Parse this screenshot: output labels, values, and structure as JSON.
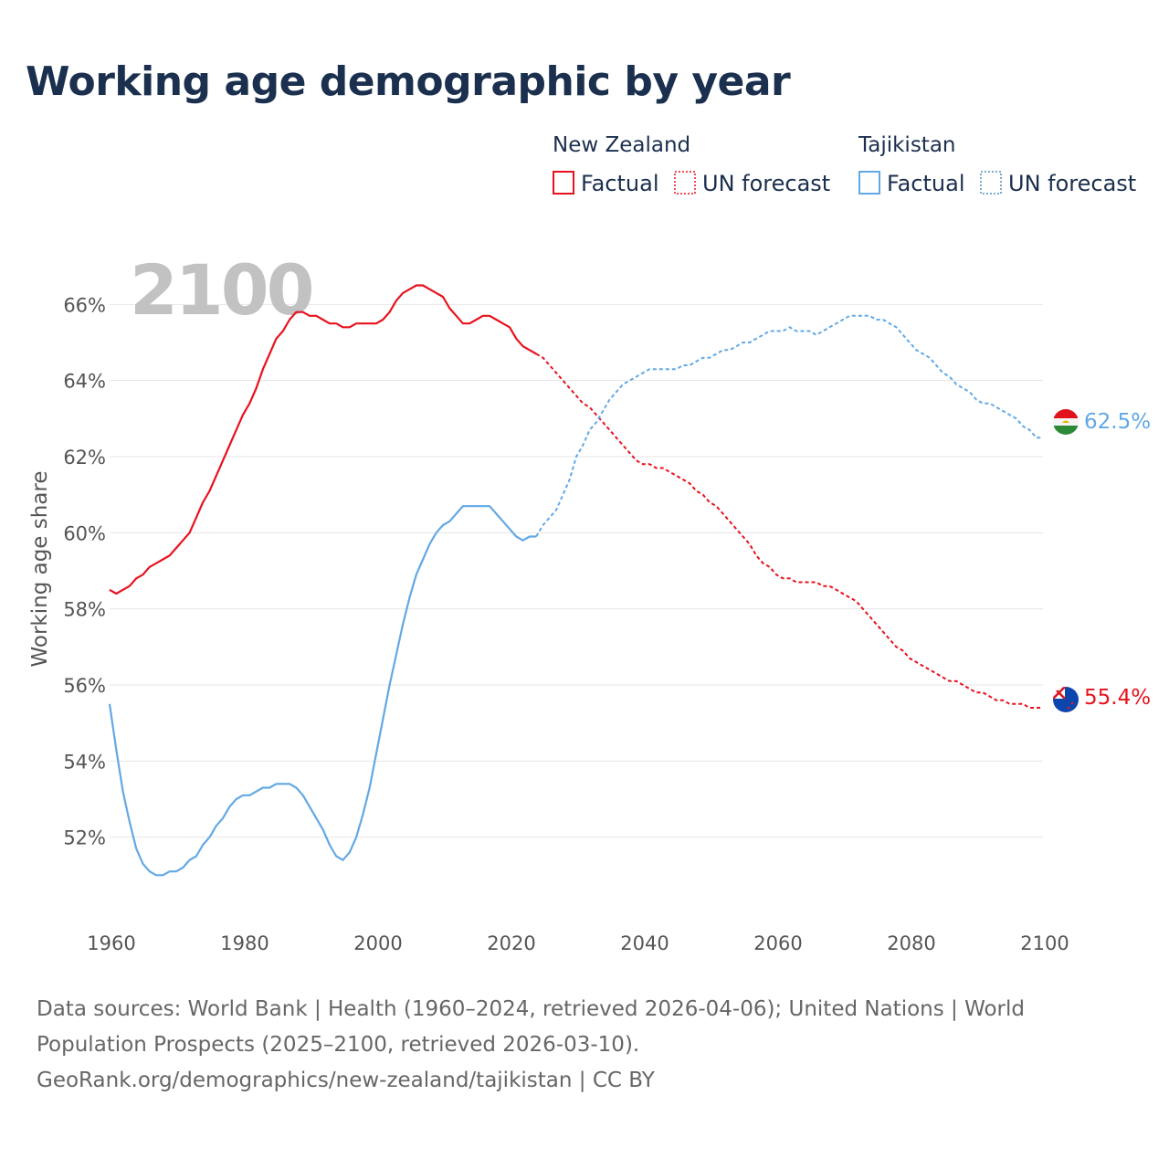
{
  "title": "Working age demographic by year",
  "footer": {
    "line1": "Data sources: World Bank | Health (1960–2024, retrieved 2026-04-06); United Nations | World",
    "line2": "Population Prospects (2025–2100, retrieved 2026-03-10).",
    "line3": "GeoRank.org/demographics/new-zealand/tajikistan | CC BY"
  },
  "legend": {
    "groups": [
      {
        "name": "New Zealand",
        "factual": "Factual",
        "forecast": "UN forecast",
        "color": "#e8121e"
      },
      {
        "name": "Tajikistan",
        "factual": "Factual",
        "forecast": "UN forecast",
        "color": "#62a8e5"
      }
    ]
  },
  "end_labels": {
    "new_zealand": "55.4%",
    "tajikistan": "62.5%"
  },
  "chart_data": {
    "type": "line",
    "title": "Working age demographic by year",
    "year_watermark": "2100",
    "xlabel": "",
    "ylabel": "Working age share",
    "xlim": [
      1960,
      2100
    ],
    "ylim": [
      50,
      68
    ],
    "x_ticks": [
      1960,
      1980,
      2000,
      2020,
      2040,
      2060,
      2080,
      2100
    ],
    "y_ticks": [
      52,
      54,
      56,
      58,
      60,
      62,
      64,
      66
    ],
    "y_tick_labels": [
      "52%",
      "54%",
      "56%",
      "58%",
      "60%",
      "62%",
      "64%",
      "66%"
    ],
    "grid": true,
    "forecast_start": 2024,
    "series": [
      {
        "name": "New Zealand",
        "color": "#e8121e",
        "end_label": "55.4%",
        "points": [
          [
            1960,
            58.5
          ],
          [
            1961,
            58.4
          ],
          [
            1962,
            58.5
          ],
          [
            1963,
            58.6
          ],
          [
            1964,
            58.8
          ],
          [
            1965,
            58.9
          ],
          [
            1966,
            59.1
          ],
          [
            1967,
            59.2
          ],
          [
            1968,
            59.3
          ],
          [
            1969,
            59.4
          ],
          [
            1970,
            59.6
          ],
          [
            1971,
            59.8
          ],
          [
            1972,
            60.0
          ],
          [
            1973,
            60.4
          ],
          [
            1974,
            60.8
          ],
          [
            1975,
            61.1
          ],
          [
            1976,
            61.5
          ],
          [
            1977,
            61.9
          ],
          [
            1978,
            62.3
          ],
          [
            1979,
            62.7
          ],
          [
            1980,
            63.1
          ],
          [
            1981,
            63.4
          ],
          [
            1982,
            63.8
          ],
          [
            1983,
            64.3
          ],
          [
            1984,
            64.7
          ],
          [
            1985,
            65.1
          ],
          [
            1986,
            65.3
          ],
          [
            1987,
            65.6
          ],
          [
            1988,
            65.8
          ],
          [
            1989,
            65.8
          ],
          [
            1990,
            65.7
          ],
          [
            1991,
            65.7
          ],
          [
            1992,
            65.6
          ],
          [
            1993,
            65.5
          ],
          [
            1994,
            65.5
          ],
          [
            1995,
            65.4
          ],
          [
            1996,
            65.4
          ],
          [
            1997,
            65.5
          ],
          [
            1998,
            65.5
          ],
          [
            1999,
            65.5
          ],
          [
            2000,
            65.5
          ],
          [
            2001,
            65.6
          ],
          [
            2002,
            65.8
          ],
          [
            2003,
            66.1
          ],
          [
            2004,
            66.3
          ],
          [
            2005,
            66.4
          ],
          [
            2006,
            66.5
          ],
          [
            2007,
            66.5
          ],
          [
            2008,
            66.4
          ],
          [
            2009,
            66.3
          ],
          [
            2010,
            66.2
          ],
          [
            2011,
            65.9
          ],
          [
            2012,
            65.7
          ],
          [
            2013,
            65.5
          ],
          [
            2014,
            65.5
          ],
          [
            2015,
            65.6
          ],
          [
            2016,
            65.7
          ],
          [
            2017,
            65.7
          ],
          [
            2018,
            65.6
          ],
          [
            2019,
            65.5
          ],
          [
            2020,
            65.4
          ],
          [
            2021,
            65.1
          ],
          [
            2022,
            64.9
          ],
          [
            2023,
            64.8
          ],
          [
            2024,
            64.7
          ],
          [
            2025,
            64.6
          ],
          [
            2026,
            64.4
          ],
          [
            2027,
            64.2
          ],
          [
            2028,
            64.0
          ],
          [
            2029,
            63.8
          ],
          [
            2030,
            63.6
          ],
          [
            2031,
            63.4
          ],
          [
            2032,
            63.3
          ],
          [
            2033,
            63.1
          ],
          [
            2034,
            62.9
          ],
          [
            2035,
            62.7
          ],
          [
            2036,
            62.5
          ],
          [
            2037,
            62.3
          ],
          [
            2038,
            62.1
          ],
          [
            2039,
            61.9
          ],
          [
            2040,
            61.8
          ],
          [
            2041,
            61.8
          ],
          [
            2042,
            61.7
          ],
          [
            2043,
            61.7
          ],
          [
            2044,
            61.6
          ],
          [
            2045,
            61.5
          ],
          [
            2046,
            61.4
          ],
          [
            2047,
            61.3
          ],
          [
            2048,
            61.1
          ],
          [
            2049,
            61.0
          ],
          [
            2050,
            60.8
          ],
          [
            2051,
            60.7
          ],
          [
            2052,
            60.5
          ],
          [
            2053,
            60.3
          ],
          [
            2054,
            60.1
          ],
          [
            2055,
            59.9
          ],
          [
            2056,
            59.7
          ],
          [
            2057,
            59.4
          ],
          [
            2058,
            59.2
          ],
          [
            2059,
            59.1
          ],
          [
            2060,
            58.9
          ],
          [
            2061,
            58.8
          ],
          [
            2062,
            58.8
          ],
          [
            2063,
            58.7
          ],
          [
            2064,
            58.7
          ],
          [
            2065,
            58.7
          ],
          [
            2066,
            58.7
          ],
          [
            2067,
            58.6
          ],
          [
            2068,
            58.6
          ],
          [
            2069,
            58.5
          ],
          [
            2070,
            58.4
          ],
          [
            2071,
            58.3
          ],
          [
            2072,
            58.2
          ],
          [
            2073,
            58.0
          ],
          [
            2074,
            57.8
          ],
          [
            2075,
            57.6
          ],
          [
            2076,
            57.4
          ],
          [
            2077,
            57.2
          ],
          [
            2078,
            57.0
          ],
          [
            2079,
            56.9
          ],
          [
            2080,
            56.7
          ],
          [
            2081,
            56.6
          ],
          [
            2082,
            56.5
          ],
          [
            2083,
            56.4
          ],
          [
            2084,
            56.3
          ],
          [
            2085,
            56.2
          ],
          [
            2086,
            56.1
          ],
          [
            2087,
            56.1
          ],
          [
            2088,
            56.0
          ],
          [
            2089,
            55.9
          ],
          [
            2090,
            55.8
          ],
          [
            2091,
            55.8
          ],
          [
            2092,
            55.7
          ],
          [
            2093,
            55.6
          ],
          [
            2094,
            55.6
          ],
          [
            2095,
            55.5
          ],
          [
            2096,
            55.5
          ],
          [
            2097,
            55.5
          ],
          [
            2098,
            55.4
          ],
          [
            2099,
            55.4
          ],
          [
            2100,
            55.4
          ]
        ]
      },
      {
        "name": "Tajikistan",
        "color": "#62a8e5",
        "end_label": "62.5%",
        "points": [
          [
            1960,
            55.5
          ],
          [
            1961,
            54.3
          ],
          [
            1962,
            53.2
          ],
          [
            1963,
            52.4
          ],
          [
            1964,
            51.7
          ],
          [
            1965,
            51.3
          ],
          [
            1966,
            51.1
          ],
          [
            1967,
            51.0
          ],
          [
            1968,
            51.0
          ],
          [
            1969,
            51.1
          ],
          [
            1970,
            51.1
          ],
          [
            1971,
            51.2
          ],
          [
            1972,
            51.4
          ],
          [
            1973,
            51.5
          ],
          [
            1974,
            51.8
          ],
          [
            1975,
            52.0
          ],
          [
            1976,
            52.3
          ],
          [
            1977,
            52.5
          ],
          [
            1978,
            52.8
          ],
          [
            1979,
            53.0
          ],
          [
            1980,
            53.1
          ],
          [
            1981,
            53.1
          ],
          [
            1982,
            53.2
          ],
          [
            1983,
            53.3
          ],
          [
            1984,
            53.3
          ],
          [
            1985,
            53.4
          ],
          [
            1986,
            53.4
          ],
          [
            1987,
            53.4
          ],
          [
            1988,
            53.3
          ],
          [
            1989,
            53.1
          ],
          [
            1990,
            52.8
          ],
          [
            1991,
            52.5
          ],
          [
            1992,
            52.2
          ],
          [
            1993,
            51.8
          ],
          [
            1994,
            51.5
          ],
          [
            1995,
            51.4
          ],
          [
            1996,
            51.6
          ],
          [
            1997,
            52.0
          ],
          [
            1998,
            52.6
          ],
          [
            1999,
            53.3
          ],
          [
            2000,
            54.2
          ],
          [
            2001,
            55.1
          ],
          [
            2002,
            56.0
          ],
          [
            2003,
            56.8
          ],
          [
            2004,
            57.6
          ],
          [
            2005,
            58.3
          ],
          [
            2006,
            58.9
          ],
          [
            2007,
            59.3
          ],
          [
            2008,
            59.7
          ],
          [
            2009,
            60.0
          ],
          [
            2010,
            60.2
          ],
          [
            2011,
            60.3
          ],
          [
            2012,
            60.5
          ],
          [
            2013,
            60.7
          ],
          [
            2014,
            60.7
          ],
          [
            2015,
            60.7
          ],
          [
            2016,
            60.7
          ],
          [
            2017,
            60.7
          ],
          [
            2018,
            60.5
          ],
          [
            2019,
            60.3
          ],
          [
            2020,
            60.1
          ],
          [
            2021,
            59.9
          ],
          [
            2022,
            59.8
          ],
          [
            2023,
            59.9
          ],
          [
            2024,
            59.9
          ],
          [
            2025,
            60.2
          ],
          [
            2026,
            60.4
          ],
          [
            2027,
            60.6
          ],
          [
            2028,
            61.0
          ],
          [
            2029,
            61.4
          ],
          [
            2030,
            62.0
          ],
          [
            2031,
            62.3
          ],
          [
            2032,
            62.7
          ],
          [
            2033,
            62.9
          ],
          [
            2034,
            63.2
          ],
          [
            2035,
            63.5
          ],
          [
            2036,
            63.7
          ],
          [
            2037,
            63.9
          ],
          [
            2038,
            64.0
          ],
          [
            2039,
            64.1
          ],
          [
            2040,
            64.2
          ],
          [
            2041,
            64.3
          ],
          [
            2042,
            64.3
          ],
          [
            2043,
            64.3
          ],
          [
            2044,
            64.3
          ],
          [
            2045,
            64.3
          ],
          [
            2046,
            64.4
          ],
          [
            2047,
            64.4
          ],
          [
            2048,
            64.5
          ],
          [
            2049,
            64.6
          ],
          [
            2050,
            64.6
          ],
          [
            2051,
            64.7
          ],
          [
            2052,
            64.8
          ],
          [
            2053,
            64.8
          ],
          [
            2054,
            64.9
          ],
          [
            2055,
            65.0
          ],
          [
            2056,
            65.0
          ],
          [
            2057,
            65.1
          ],
          [
            2058,
            65.2
          ],
          [
            2059,
            65.3
          ],
          [
            2060,
            65.3
          ],
          [
            2061,
            65.3
          ],
          [
            2062,
            65.4
          ],
          [
            2063,
            65.3
          ],
          [
            2064,
            65.3
          ],
          [
            2065,
            65.3
          ],
          [
            2066,
            65.2
          ],
          [
            2067,
            65.3
          ],
          [
            2068,
            65.4
          ],
          [
            2069,
            65.5
          ],
          [
            2070,
            65.6
          ],
          [
            2071,
            65.7
          ],
          [
            2072,
            65.7
          ],
          [
            2073,
            65.7
          ],
          [
            2074,
            65.7
          ],
          [
            2075,
            65.6
          ],
          [
            2076,
            65.6
          ],
          [
            2077,
            65.5
          ],
          [
            2078,
            65.4
          ],
          [
            2079,
            65.2
          ],
          [
            2080,
            65.0
          ],
          [
            2081,
            64.8
          ],
          [
            2082,
            64.7
          ],
          [
            2083,
            64.6
          ],
          [
            2084,
            64.4
          ],
          [
            2085,
            64.2
          ],
          [
            2086,
            64.1
          ],
          [
            2087,
            63.9
          ],
          [
            2088,
            63.8
          ],
          [
            2089,
            63.7
          ],
          [
            2090,
            63.5
          ],
          [
            2091,
            63.4
          ],
          [
            2092,
            63.4
          ],
          [
            2093,
            63.3
          ],
          [
            2094,
            63.2
          ],
          [
            2095,
            63.1
          ],
          [
            2096,
            63.0
          ],
          [
            2097,
            62.8
          ],
          [
            2098,
            62.7
          ],
          [
            2099,
            62.5
          ],
          [
            2100,
            62.5
          ]
        ]
      }
    ]
  }
}
